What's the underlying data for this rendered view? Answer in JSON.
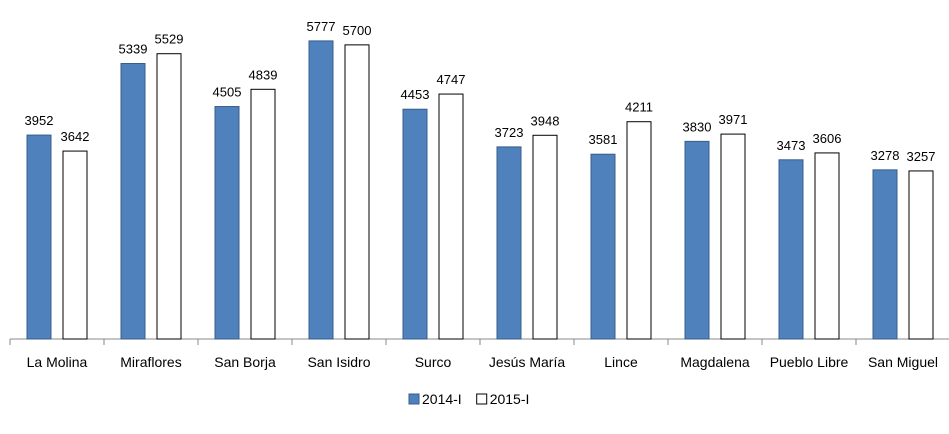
{
  "chart_data": {
    "type": "bar",
    "categories": [
      "La Molina",
      "Miraflores",
      "San Borja",
      "San Isidro",
      "Surco",
      "Jesús María",
      "Lince",
      "Magdalena",
      "Pueblo Libre",
      "San Miguel"
    ],
    "series": [
      {
        "name": "2014-I",
        "color": "#4f81bd",
        "values": [
          3952,
          5339,
          4505,
          5777,
          4453,
          3723,
          3581,
          3830,
          3473,
          3278
        ]
      },
      {
        "name": "2015-I",
        "color": "#ffffff",
        "values": [
          3642,
          5529,
          4839,
          5700,
          4747,
          3948,
          4211,
          3971,
          3606,
          3257
        ]
      }
    ],
    "ylim": [
      0,
      6000
    ],
    "legend": "bottom"
  }
}
